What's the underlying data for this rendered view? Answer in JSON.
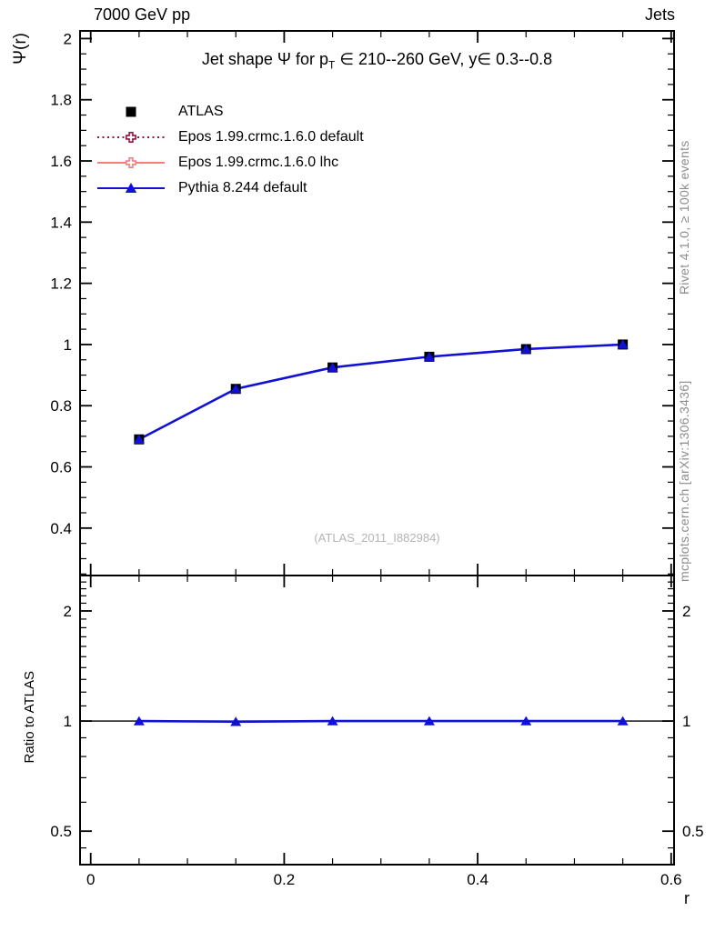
{
  "header": {
    "left_title": "7000 GeV pp",
    "right_title": "Jets"
  },
  "plot_title": {
    "pre": "Jet shape Ψ for p",
    "sub": "T",
    "post": " ∈ 210--260 GeV,  y∈ 0.3--0.8"
  },
  "axis_labels": {
    "y_main": "Ψ(r)",
    "y_ratio": "Ratio to ATLAS",
    "x": "r"
  },
  "side_notes": {
    "rivet": "Rivet 4.1.0, ≥ 100k events",
    "mcplots": "mcplots.cern.ch [arXiv:1306.3436]"
  },
  "watermark": "(ATLAS_2011_I882984)",
  "colors": {
    "atlas": "#000000",
    "epos_default": "#96143c",
    "epos_lhc": "#f28077",
    "pythia": "#1111d6",
    "watermark": "#b4b4b4",
    "side_text": "#8c8c8c"
  },
  "legend": {
    "entries": [
      {
        "label": "ATLAS",
        "marker": "filled-square",
        "line": "none",
        "color": "#000000"
      },
      {
        "label": "Epos 1.99.crmc.1.6.0 default",
        "marker": "open-cross",
        "line": "dotted",
        "color": "#96143c"
      },
      {
        "label": "Epos 1.99.crmc.1.6.0 lhc",
        "marker": "open-cross",
        "line": "solid",
        "color": "#f28077"
      },
      {
        "label": "Pythia 8.244 default",
        "marker": "filled-triangle",
        "line": "solid",
        "color": "#1111d6"
      }
    ]
  },
  "chart_data": [
    {
      "type": "line",
      "panel": "main",
      "title": "Jet shape Ψ for pT ∈ 210--260 GeV, y∈ 0.3--0.8",
      "xlabel": "r",
      "ylabel": "Ψ(r)",
      "xlim": [
        -0.011,
        0.603
      ],
      "ylim": [
        0.245,
        2.025
      ],
      "yscale": "linear",
      "grid": false,
      "legend_position": "top-left",
      "x": [
        0.05,
        0.15,
        0.25,
        0.35,
        0.45,
        0.55
      ],
      "series": [
        {
          "name": "ATLAS",
          "marker": "filled-square",
          "line": "none",
          "color": "#000000",
          "values": [
            0.69,
            0.855,
            0.925,
            0.96,
            0.985,
            1.0
          ]
        },
        {
          "name": "Epos 1.99.crmc.1.6.0 default",
          "marker": "open-cross",
          "line": "dotted",
          "color": "#96143c",
          "visible_in_plot": false,
          "values": []
        },
        {
          "name": "Epos 1.99.crmc.1.6.0 lhc",
          "marker": "open-cross",
          "line": "solid",
          "color": "#f28077",
          "visible_in_plot": false,
          "values": []
        },
        {
          "name": "Pythia 8.244 default",
          "marker": "filled-triangle",
          "line": "solid",
          "color": "#1111d6",
          "values": [
            0.69,
            0.855,
            0.925,
            0.96,
            0.985,
            1.0
          ]
        }
      ],
      "x_ticks": {
        "major": [
          0,
          0.2,
          0.4,
          0.6
        ],
        "labels": [
          "0",
          "0.2",
          "0.4",
          "0.6"
        ],
        "minor_step": 0.05
      },
      "y_ticks": {
        "major": [
          0.4,
          0.6,
          0.8,
          1,
          1.2,
          1.4,
          1.6,
          1.8,
          2
        ],
        "labels": [
          "0.4",
          "0.6",
          "0.8",
          "1",
          "1.2",
          "1.4",
          "1.6",
          "1.8",
          "2"
        ],
        "minor_step": 0.05
      }
    },
    {
      "type": "line",
      "panel": "ratio",
      "ylabel": "Ratio to ATLAS",
      "xlabel": "r",
      "xlim": [
        -0.011,
        0.603
      ],
      "ylim": [
        0.405,
        2.5
      ],
      "yscale": "log",
      "grid": false,
      "reference_line": 1.0,
      "x": [
        0.05,
        0.15,
        0.25,
        0.35,
        0.45,
        0.55
      ],
      "series": [
        {
          "name": "Pythia 8.244 default",
          "marker": "filled-triangle",
          "line": "solid",
          "color": "#1111d6",
          "values": [
            1.0,
            0.996,
            1.0,
            1.0,
            1.0,
            1.0
          ]
        }
      ],
      "x_ticks": {
        "major": [
          0,
          0.2,
          0.4,
          0.6
        ],
        "labels": [
          "0",
          "0.2",
          "0.4",
          "0.6"
        ],
        "minor_step": 0.05
      },
      "y_ticks": {
        "major": [
          0.5,
          1,
          2
        ],
        "labels": [
          "0.5",
          "1",
          "2"
        ],
        "minor": [
          0.45,
          0.6,
          0.7,
          0.8,
          0.9,
          1.1,
          1.2,
          1.3,
          1.4,
          1.5,
          1.6,
          1.7,
          1.8,
          1.9,
          2.1,
          2.2,
          2.3,
          2.4
        ]
      }
    }
  ]
}
